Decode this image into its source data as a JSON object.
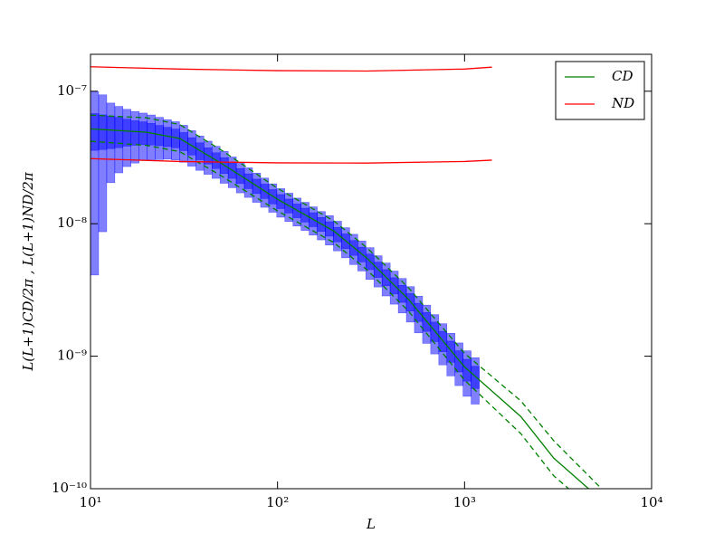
{
  "chart_data": {
    "type": "line",
    "xlabel": "L",
    "ylabel": "L(L+1)CD/2π   ,   L(L+1)ND/2π",
    "log_x": true,
    "log_y": true,
    "xlim": [
      10,
      10000
    ],
    "ylim": [
      1e-10,
      1.9e-07
    ],
    "xticks": [
      {
        "value": 10,
        "label": "10¹"
      },
      {
        "value": 100,
        "label": "10²"
      },
      {
        "value": 1000,
        "label": "10³"
      },
      {
        "value": 10000,
        "label": "10⁴"
      }
    ],
    "yticks": [
      {
        "value": 1e-10,
        "label": "10⁻¹⁰"
      },
      {
        "value": 1e-09,
        "label": "10⁻⁹"
      },
      {
        "value": 1e-08,
        "label": "10⁻⁸"
      },
      {
        "value": 1e-07,
        "label": "10⁻⁷"
      }
    ],
    "legend": "upper right",
    "series": [
      {
        "name": "CD",
        "color": "#008000",
        "x": [
          10,
          20,
          30,
          50,
          100,
          200,
          300,
          500,
          1000,
          2000,
          3000,
          4600
        ],
        "values": [
          5.2e-08,
          4.9e-08,
          4.4e-08,
          2.86e-08,
          1.53e-08,
          8.8e-09,
          5.5e-09,
          2.7e-09,
          8.3e-10,
          3.5e-10,
          1.7e-10,
          1e-10
        ]
      },
      {
        "color": "#008000",
        "dashed": true,
        "x": [
          10,
          20,
          30,
          50,
          100,
          200,
          300,
          500,
          1000,
          2000,
          3000,
          5400
        ],
        "values": [
          6.6e-08,
          6.3e-08,
          5.6e-08,
          3.6e-08,
          1.85e-08,
          1.05e-08,
          6.6e-09,
          3.3e-09,
          1.05e-09,
          4.6e-10,
          2.3e-10,
          1e-10
        ]
      },
      {
        "color": "#008000",
        "dashed": true,
        "x": [
          10,
          20,
          30,
          50,
          100,
          200,
          300,
          500,
          1000,
          2000,
          3000,
          3600
        ],
        "values": [
          4.2e-08,
          3.9e-08,
          3.5e-08,
          2.3e-08,
          1.25e-08,
          7.2e-09,
          4.5e-09,
          2.2e-09,
          6.6e-10,
          2.6e-10,
          1.25e-10,
          1e-10
        ]
      },
      {
        "name": "ND",
        "color": "#ff0000",
        "x": [
          10,
          30,
          100,
          300,
          1000,
          1400
        ],
        "values": [
          1.53e-07,
          1.47e-07,
          1.43e-07,
          1.42e-07,
          1.47e-07,
          1.52e-07
        ]
      },
      {
        "color": "#ff0000",
        "x": [
          10,
          30,
          100,
          300,
          1000,
          1400
        ],
        "values": [
          3.1e-08,
          2.95e-08,
          2.88e-08,
          2.87e-08,
          2.95e-08,
          3.02e-08
        ]
      }
    ],
    "error_boxes": {
      "color": "#0000ff",
      "bins": [
        10,
        11.05,
        12.21,
        13.49,
        14.9,
        16.46,
        18.19,
        20.1,
        22.21,
        24.54,
        27.1,
        29.95,
        33.09,
        36.56,
        40.39,
        44.63,
        49.31,
        54.48,
        60.19,
        66.5,
        73.45,
        81.18,
        89.69,
        99.06,
        109.4,
        120.9,
        133.6,
        147.6,
        163.1,
        180.2,
        199.1,
        220.0,
        243.0,
        268.5,
        296.7,
        327.8,
        362.2,
        400.2,
        442.1,
        488.5,
        539.5,
        596.4,
        658.8,
        727.9,
        804.2,
        888.5,
        981.3,
        1084,
        1198
      ],
      "values": [
        5.18e-08,
        5.13e-08,
        5.09e-08,
        5.05e-08,
        5e-08,
        4.95e-08,
        4.92e-08,
        4.83e-08,
        4.7e-08,
        4.58e-08,
        4.46e-08,
        4.22e-08,
        3.88e-08,
        3.56e-08,
        3.28e-08,
        3.02e-08,
        2.77e-08,
        2.53e-08,
        2.31e-08,
        2.11e-08,
        1.93e-08,
        1.77e-08,
        1.61e-08,
        1.48e-08,
        1.37e-08,
        1.26e-08,
        1.17e-08,
        1.08e-08,
        9.95e-09,
        9.2e-09,
        8.34e-09,
        7.43e-09,
        6.62e-09,
        5.9e-09,
        5.2e-09,
        4.53e-09,
        3.95e-09,
        3.43e-09,
        2.99e-09,
        2.58e-09,
        2.17e-09,
        1.84e-09,
        1.55e-09,
        1.31e-09,
        1.1e-09,
        9.3e-10,
        7.98e-10,
        7.05e-10
      ],
      "errors": [
        4.77e-08,
        4.26e-08,
        3.05e-08,
        2.63e-08,
        2.3e-08,
        2.08e-08,
        1.92e-08,
        1.79e-08,
        1.65e-08,
        1.51e-08,
        1.43e-08,
        1.31e-08,
        1.16e-08,
        1.03e-08,
        9.2e-09,
        8.2e-09,
        7.5e-09,
        6.6e-09,
        6e-09,
        5.3e-09,
        4.8e-09,
        4.4e-09,
        3.9e-09,
        3.6e-09,
        3.3e-09,
        3e-09,
        2.8e-09,
        2.6e-09,
        2.4e-09,
        2.3e-09,
        2.1e-09,
        1.9e-09,
        1.7e-09,
        1.5e-09,
        1.4e-09,
        1.2e-09,
        1.1e-09,
        9.6e-10,
        8.7e-10,
        7.7e-10,
        6.7e-10,
        5.9e-10,
        5.1e-10,
        4.5e-10,
        3.9e-10,
        3.3e-10,
        3e-10,
        2.7e-10
      ],
      "inner_errors": [
        1.6e-08,
        1.5e-08,
        1.4e-08,
        1.3e-08,
        1.15e-08,
        1.04e-08,
        9.6e-09,
        9e-09,
        8.2e-09,
        7.6e-09,
        7.2e-09,
        6.6e-09,
        5.8e-09,
        5.2e-09,
        4.6e-09,
        4.1e-09,
        3.8e-09,
        3.3e-09,
        3e-09,
        2.7e-09,
        2.4e-09,
        2.2e-09,
        2e-09,
        1.8e-09,
        1.65e-09,
        1.5e-09,
        1.4e-09,
        1.3e-09,
        1.2e-09,
        1.15e-09,
        1.05e-09,
        9.5e-10,
        8.5e-10,
        7.5e-10,
        7e-10,
        6e-10,
        5.5e-10,
        4.8e-10,
        4.4e-10,
        3.9e-10,
        3.4e-10,
        3e-10,
        2.6e-10,
        2.3e-10,
        2e-10,
        1.7e-10,
        1.5e-10,
        1.35e-10
      ]
    }
  }
}
